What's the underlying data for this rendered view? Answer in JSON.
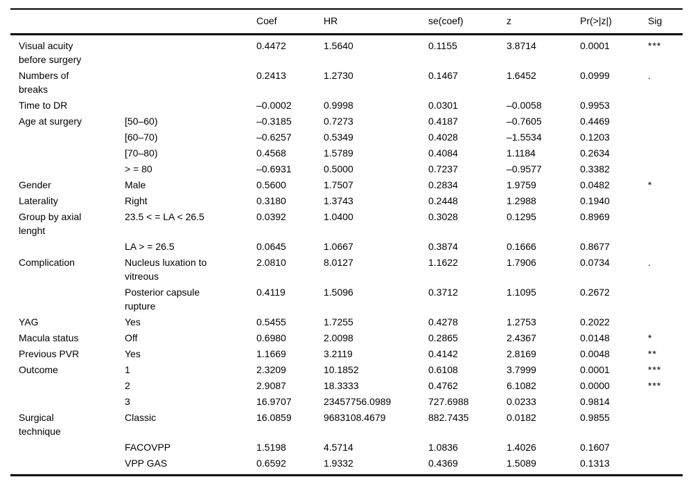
{
  "table": {
    "columns": [
      "",
      "",
      "Coef",
      "HR",
      "se(coef)",
      "z",
      "Pr(>|z|)",
      "Sig"
    ],
    "column_keys": [
      "variable",
      "category",
      "coef",
      "hr",
      "se",
      "z",
      "p",
      "sig"
    ],
    "rows": [
      {
        "variable": "Visual acuity\nbefore surgery",
        "category": "",
        "coef": "0.4472",
        "hr": "1.5640",
        "se": "0.1155",
        "z": "3.8714",
        "p": "0.0001",
        "sig": "***"
      },
      {
        "variable": "Numbers of\nbreaks",
        "category": "",
        "coef": "0.2413",
        "hr": "1.2730",
        "se": "0.1467",
        "z": "1.6452",
        "p": "0.0999",
        "sig": "."
      },
      {
        "variable": "Time to DR",
        "category": "",
        "coef": "–0.0002",
        "hr": "0.9998",
        "se": "0.0301",
        "z": "–0.0058",
        "p": "0.9953",
        "sig": ""
      },
      {
        "variable": "Age at surgery",
        "category": "[50–60)",
        "coef": "–0.3185",
        "hr": "0.7273",
        "se": "0.4187",
        "z": "–0.7605",
        "p": "0.4469",
        "sig": ""
      },
      {
        "variable": "",
        "category": "[60–70)",
        "coef": "–0.6257",
        "hr": "0.5349",
        "se": "0.4028",
        "z": "–1.5534",
        "p": "0.1203",
        "sig": ""
      },
      {
        "variable": "",
        "category": "[70–80)",
        "coef": "0.4568",
        "hr": "1.5789",
        "se": "0.4084",
        "z": "1.1184",
        "p": "0.2634",
        "sig": ""
      },
      {
        "variable": "",
        "category": "> = 80",
        "coef": "–0.6931",
        "hr": "0.5000",
        "se": "0.7237",
        "z": "–0.9577",
        "p": "0.3382",
        "sig": ""
      },
      {
        "variable": "Gender",
        "category": "Male",
        "coef": "0.5600",
        "hr": "1.7507",
        "se": "0.2834",
        "z": "1.9759",
        "p": "0.0482",
        "sig": "*"
      },
      {
        "variable": "Laterality",
        "category": "Right",
        "coef": "0.3180",
        "hr": "1.3743",
        "se": "0.2448",
        "z": "1.2988",
        "p": "0.1940",
        "sig": ""
      },
      {
        "variable": "Group by axial\nlenght",
        "category": "23.5 < = LA < 26.5",
        "coef": "0.0392",
        "hr": "1.0400",
        "se": "0.3028",
        "z": "0.1295",
        "p": "0.8969",
        "sig": ""
      },
      {
        "variable": "",
        "category": "LA > = 26.5",
        "coef": "0.0645",
        "hr": "1.0667",
        "se": "0.3874",
        "z": "0.1666",
        "p": "0.8677",
        "sig": ""
      },
      {
        "variable": "Complication",
        "category": "Nucleus luxation to\nvitreous",
        "coef": "2.0810",
        "hr": "8.0127",
        "se": "1.1622",
        "z": "1.7906",
        "p": "0.0734",
        "sig": "."
      },
      {
        "variable": "",
        "category": "Posterior capsule\nrupture",
        "coef": "0.4119",
        "hr": "1.5096",
        "se": "0.3712",
        "z": "1.1095",
        "p": "0.2672",
        "sig": ""
      },
      {
        "variable": "YAG",
        "category": "Yes",
        "coef": "0.5455",
        "hr": "1.7255",
        "se": "0.4278",
        "z": "1.2753",
        "p": "0.2022",
        "sig": ""
      },
      {
        "variable": "Macula status",
        "category": "Off",
        "coef": "0.6980",
        "hr": "2.0098",
        "se": "0.2865",
        "z": "2.4367",
        "p": "0.0148",
        "sig": "*"
      },
      {
        "variable": "Previous PVR",
        "category": "Yes",
        "coef": "1.1669",
        "hr": "3.2119",
        "se": "0.4142",
        "z": "2.8169",
        "p": "0.0048",
        "sig": "**"
      },
      {
        "variable": "Outcome",
        "category": "1",
        "coef": "2.3209",
        "hr": "10.1852",
        "se": "0.6108",
        "z": "3.7999",
        "p": "0.0001",
        "sig": "***"
      },
      {
        "variable": "",
        "category": "2",
        "coef": "2.9087",
        "hr": "18.3333",
        "se": "0.4762",
        "z": "6.1082",
        "p": "0.0000",
        "sig": "***"
      },
      {
        "variable": "",
        "category": "3",
        "coef": "16.9707",
        "hr": "23457756.0989",
        "se": "727.6988",
        "z": "0.0233",
        "p": "0.9814",
        "sig": ""
      },
      {
        "variable": "Surgical\ntechnique",
        "category": "Classic",
        "coef": "16.0859",
        "hr": "9683108.4679",
        "se": "882.7435",
        "z": "0.0182",
        "p": "0.9855",
        "sig": ""
      },
      {
        "variable": "",
        "category": "FACOVPP",
        "coef": "1.5198",
        "hr": "4.5714",
        "se": "1.0836",
        "z": "1.4026",
        "p": "0.1607",
        "sig": ""
      },
      {
        "variable": "",
        "category": "VPP GAS",
        "coef": "0.6592",
        "hr": "1.9332",
        "se": "0.4369",
        "z": "1.5089",
        "p": "0.1313",
        "sig": ""
      }
    ]
  }
}
